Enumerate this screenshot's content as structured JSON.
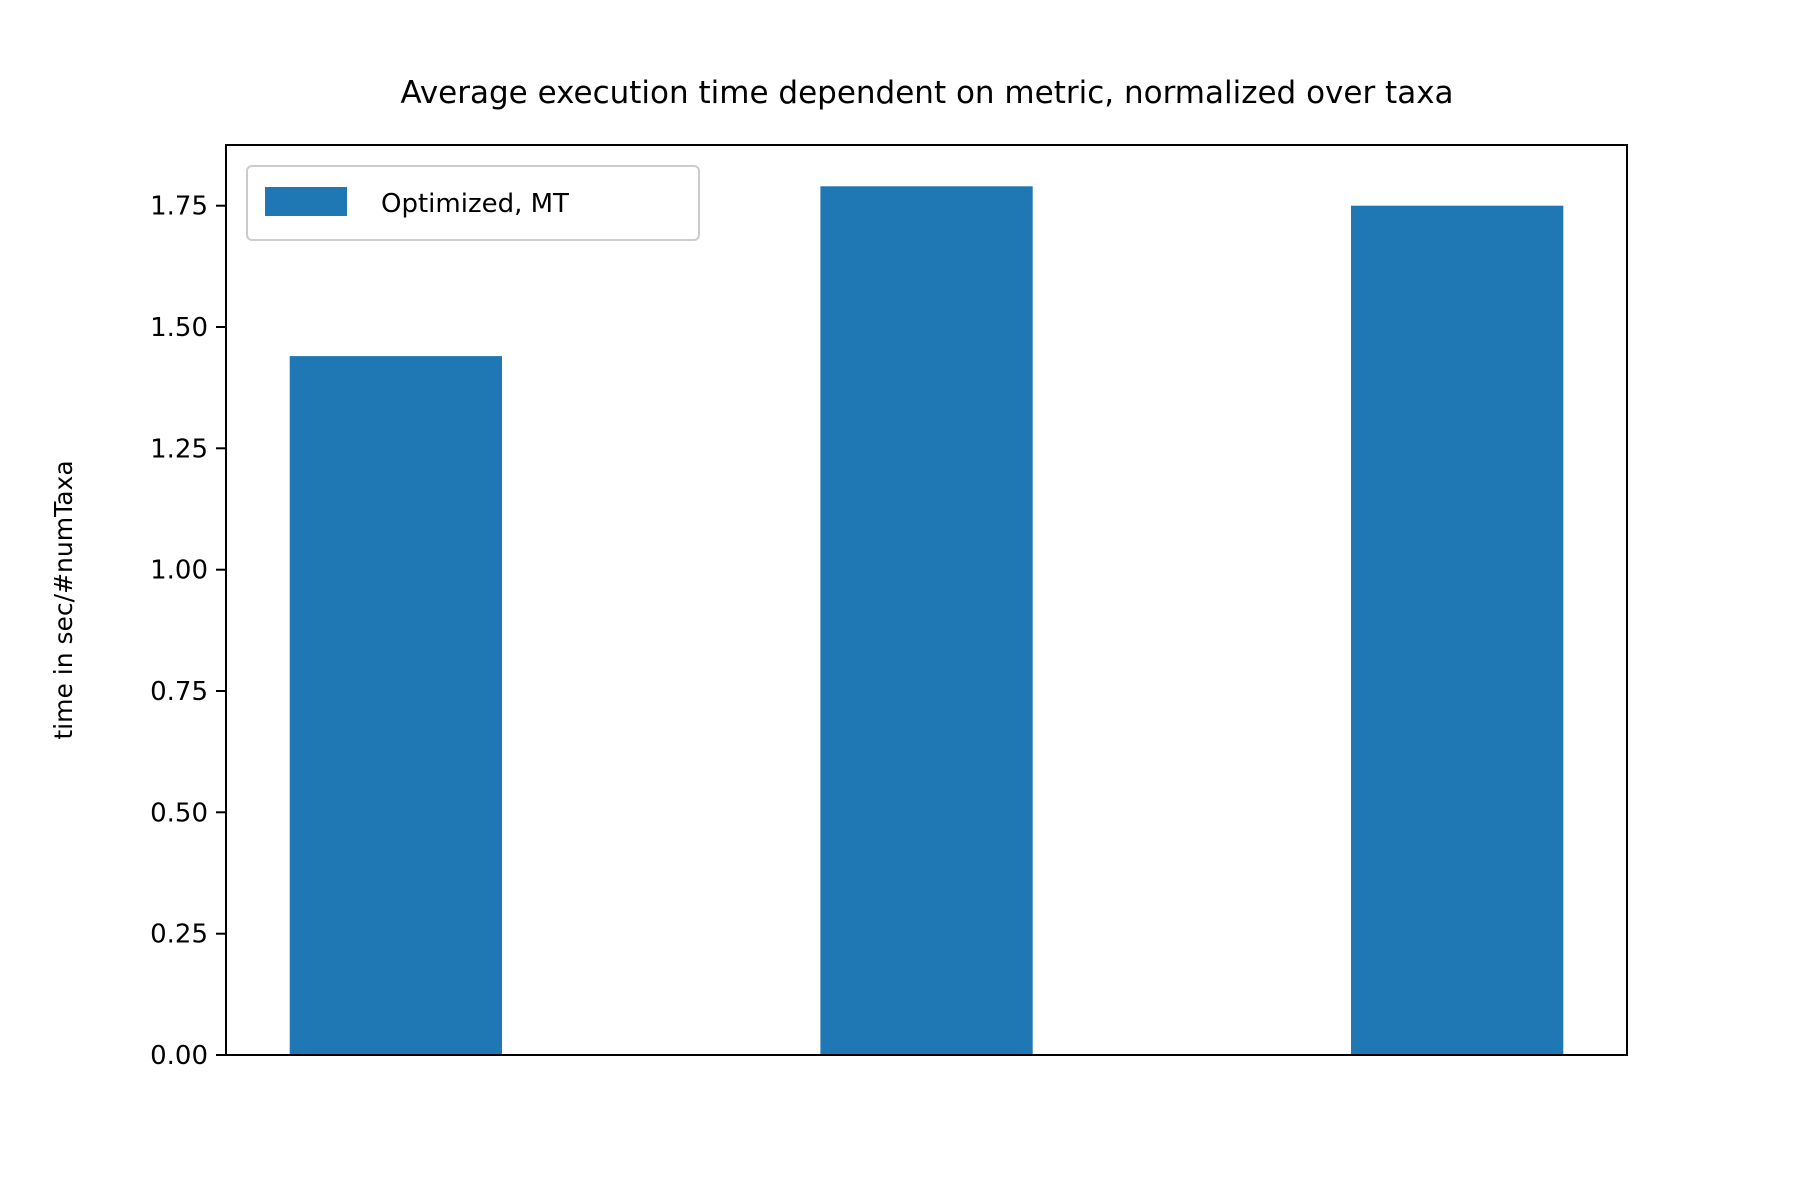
{
  "chart_data": {
    "type": "bar",
    "title": "Average execution time dependent on metric, normalized over taxa",
    "xlabel": "",
    "ylabel": "time in sec/#numTaxa",
    "categories": [
      "",
      "",
      ""
    ],
    "series": [
      {
        "name": "Optimized, MT",
        "color": "#1f77b4",
        "values": [
          1.44,
          1.79,
          1.75
        ]
      }
    ],
    "ylim": [
      0,
      1.875
    ],
    "yticks": [
      0.0,
      0.25,
      0.5,
      0.75,
      1.0,
      1.25,
      1.5,
      1.75
    ],
    "ytick_labels": [
      "0.00",
      "0.25",
      "0.50",
      "0.75",
      "1.00",
      "1.25",
      "1.50",
      "1.75"
    ],
    "legend": "upper-left",
    "grid": false
  }
}
